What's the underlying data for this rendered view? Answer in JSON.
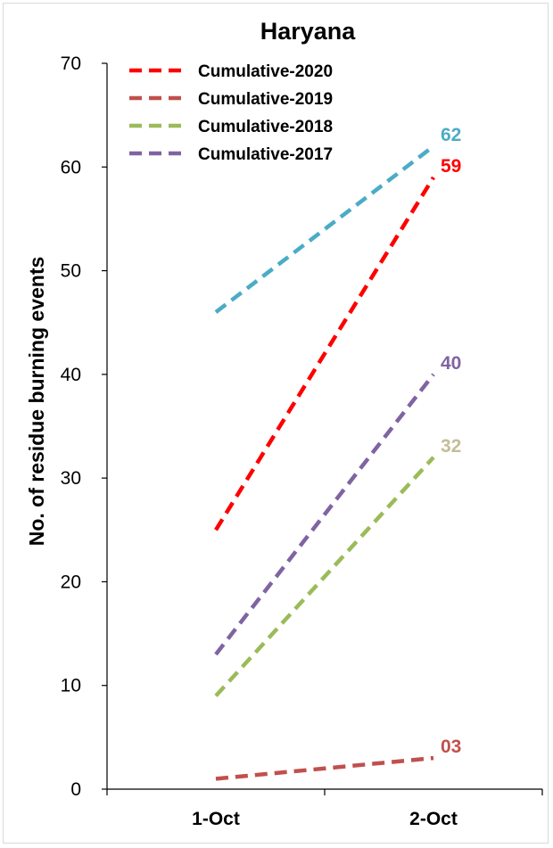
{
  "chart_data": {
    "type": "line",
    "title": "Haryana",
    "ylabel": "No. of residue burning events",
    "xlabel": "",
    "categories": [
      "1-Oct",
      "2-Oct"
    ],
    "ylim": [
      0,
      70
    ],
    "yticks": [
      "0",
      "10",
      "20",
      "30",
      "40",
      "50",
      "60",
      "70"
    ],
    "grid": false,
    "legend_position": "top-left",
    "series": [
      {
        "name": "Cumulative-2020",
        "values": [
          25,
          59
        ],
        "color": "#ff0000",
        "end_label": "59",
        "label_color": "#ff0000"
      },
      {
        "name": "Cumulative-2019",
        "values": [
          1,
          3
        ],
        "color": "#c0504d",
        "end_label": "03",
        "label_color": "#c0504d"
      },
      {
        "name": "Cumulative-2018",
        "values": [
          9,
          32
        ],
        "color": "#9bbb59",
        "end_label": "32",
        "label_color": "#c4bd97"
      },
      {
        "name": "Cumulative-2017",
        "values": [
          13,
          40
        ],
        "color": "#8064a2",
        "end_label": "40",
        "label_color": "#8064a2"
      },
      {
        "name": "",
        "values": [
          46,
          62
        ],
        "color": "#4bacc6",
        "end_label": "62",
        "label_color": "#4bacc6"
      }
    ]
  }
}
